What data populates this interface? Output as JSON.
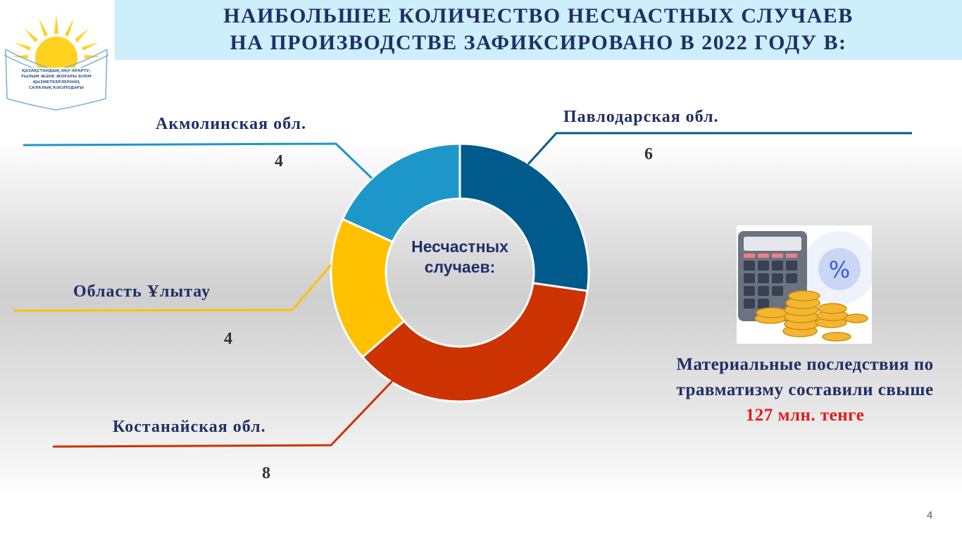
{
  "header": {
    "title_line1": "НАИБОЛЬШЕЕ КОЛИЧЕСТВО НЕСЧАСТНЫХ СЛУЧАЕВ",
    "title_line2": "НА ПРОИЗВОДСТВЕ ЗАФИКСИРОВАНО В 2022 ГОДУ  В:",
    "logo_text": [
      "ҚАЗАҚСТАНДЫҚ ОҚУ-АҒАРТУ,",
      "ҒЫЛЫМ ЖӘНЕ ЖОҒАРЫ БІЛІМ",
      "ҚЫЗМЕТКЕРЛЕРІНІҢ",
      "САЛАЛЫҚ КӘСІПОДАҒЫ"
    ]
  },
  "chart_data": {
    "type": "pie",
    "subtype": "donut",
    "center_label": "Несчастных случаев:",
    "categories": [
      "Павлодарская обл.",
      "Костанайская обл.",
      "Область Ұлытау",
      "Акмолинская обл."
    ],
    "values": [
      6,
      8,
      4,
      4
    ],
    "colors": [
      "#005a8c",
      "#cc3300",
      "#ffc000",
      "#1d97c9"
    ],
    "legend": "callout-labels"
  },
  "note": {
    "text": "Материальные последствия по травматизму составили свыше",
    "highlight": "127 млн. тенге",
    "highlight_color": "#e31b1b",
    "icon": "calculator-coins-percent-icon"
  },
  "page_number": "4"
}
